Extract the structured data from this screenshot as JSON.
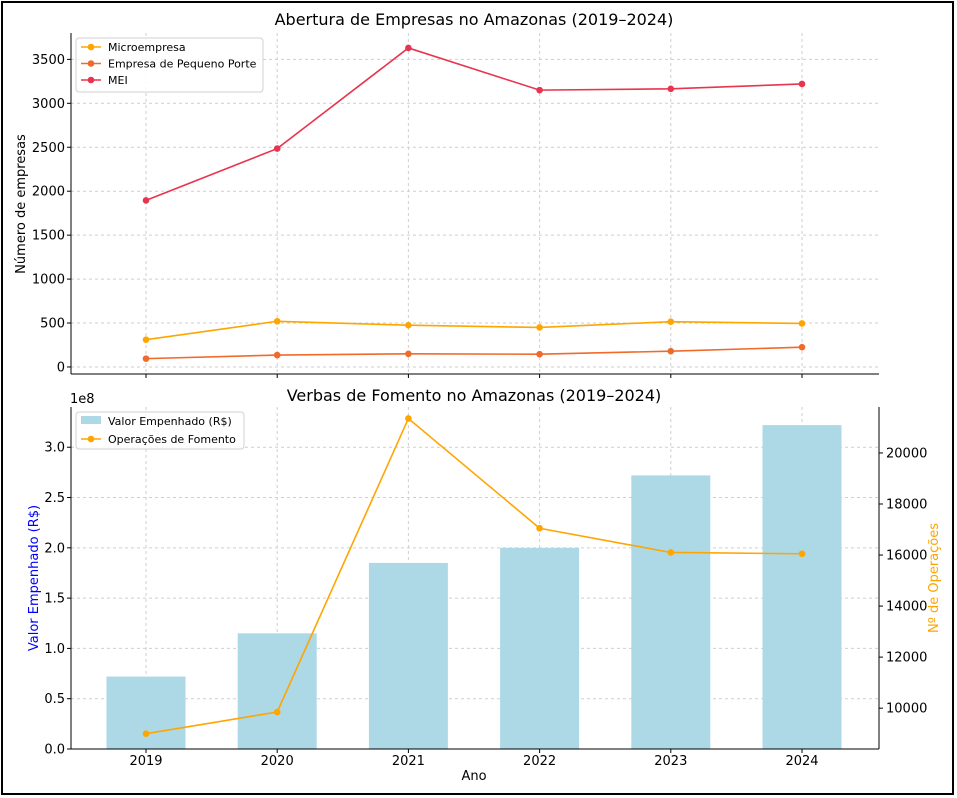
{
  "chart_data": [
    {
      "type": "line",
      "title": "Abertura de Empresas no Amazonas (2019–2024)",
      "xlabel": "",
      "ylabel": "Número de empresas",
      "x": [
        2019,
        2020,
        2021,
        2022,
        2023,
        2024
      ],
      "ylim": [
        -80,
        3800
      ],
      "yticks": [
        0,
        500,
        1000,
        1500,
        2000,
        2500,
        3000,
        3500
      ],
      "grid": true,
      "legend": "top-left",
      "series": [
        {
          "name": "Microempresa",
          "color": "#ffa500",
          "values": [
            310,
            520,
            475,
            450,
            515,
            495
          ]
        },
        {
          "name": "Empresa de Pequeno Porte",
          "color": "#f06a2a",
          "values": [
            95,
            135,
            150,
            145,
            180,
            225
          ]
        },
        {
          "name": "MEI",
          "color": "#e8344e",
          "values": [
            1895,
            2485,
            3630,
            3150,
            3165,
            3220
          ]
        }
      ]
    },
    {
      "type": "bar",
      "title": "Verbas de Fomento no Amazonas (2019–2024)",
      "xlabel": "Ano",
      "ylabel": "Valor Empenhado (R$)",
      "ylabel_color": "#0000ff",
      "y_offset_label": "1e8",
      "y2label": "Nº de Operações",
      "y2label_color": "#ffa500",
      "categories": [
        "2019",
        "2020",
        "2021",
        "2022",
        "2023",
        "2024"
      ],
      "ylim": [
        0,
        3.4
      ],
      "yticks": [
        "0.0",
        "0.5",
        "1.0",
        "1.5",
        "2.0",
        "2.5",
        "3.0"
      ],
      "y2lim": [
        8400,
        21800
      ],
      "y2ticks": [
        "10000",
        "12000",
        "14000",
        "16000",
        "18000",
        "20000"
      ],
      "grid": true,
      "legend": "top-left",
      "series": [
        {
          "name": "Valor Empenhado (R$)",
          "kind": "bar",
          "axis": "left",
          "color": "#add8e6",
          "values": [
            0.72,
            1.15,
            1.85,
            2.0,
            2.72,
            3.22
          ]
        },
        {
          "name": "Operações de Fomento",
          "kind": "line",
          "axis": "right",
          "color": "#ffa500",
          "values": [
            9000,
            9850,
            21350,
            17050,
            16100,
            16050
          ]
        }
      ]
    }
  ]
}
